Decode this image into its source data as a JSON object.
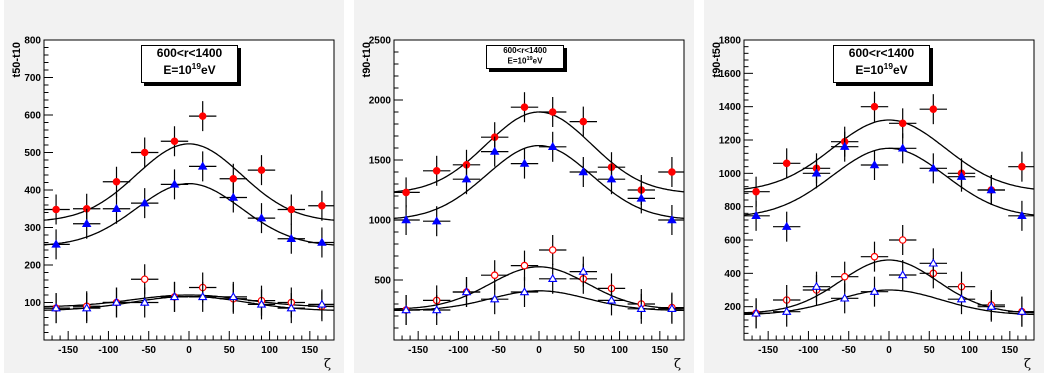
{
  "chart_data": [
    {
      "type": "scatter",
      "ylabel": "t50-t10",
      "xlabel": "ζ",
      "xlim": [
        -180,
        180
      ],
      "ylim": [
        0,
        800
      ],
      "yticks": [
        100,
        200,
        300,
        400,
        500,
        600,
        700,
        800
      ],
      "xticks": [
        -150,
        -100,
        -50,
        0,
        50,
        100,
        150
      ],
      "label_line1": "600<r<1400",
      "label_line2_base": "E=10",
      "label_line2_exp": "19",
      "label_line2_unit": "eV",
      "series": [
        {
          "marker": "filled-circle",
          "color": "#ff0000",
          "x": [
            -165,
            -127,
            -90,
            -55,
            -18,
            17,
            55,
            90,
            127,
            165
          ],
          "y": [
            348,
            350,
            422,
            500,
            530,
            597,
            430,
            453,
            348,
            358
          ]
        },
        {
          "marker": "filled-triangle",
          "color": "#0000ff",
          "x": [
            -165,
            -127,
            -90,
            -55,
            -18,
            17,
            55,
            90,
            127,
            165
          ],
          "y": [
            255,
            310,
            350,
            365,
            415,
            463,
            380,
            325,
            270,
            260
          ]
        },
        {
          "marker": "open-circle",
          "color": "#ff0000",
          "x": [
            -165,
            -127,
            -90,
            -55,
            -18,
            17,
            55,
            90,
            127,
            165
          ],
          "y": [
            85,
            90,
            100,
            162,
            115,
            140,
            110,
            105,
            100,
            90
          ]
        },
        {
          "marker": "open-triangle",
          "color": "#0000ff",
          "x": [
            -165,
            -127,
            -90,
            -55,
            -18,
            17,
            55,
            90,
            127,
            165
          ],
          "y": [
            85,
            85,
            100,
            100,
            115,
            115,
            115,
            95,
            85,
            95
          ]
        }
      ],
      "fits": [
        {
          "base": 315,
          "amp": 208,
          "mu": 0,
          "sigma": 65
        },
        {
          "base": 250,
          "amp": 167,
          "mu": 0,
          "sigma": 65
        },
        {
          "base": 88,
          "amp": 32,
          "mu": 0,
          "sigma": 70
        },
        {
          "base": 78,
          "amp": 38,
          "mu": 0,
          "sigma": 70
        }
      ]
    },
    {
      "type": "scatter",
      "ylabel": "t90-t10",
      "xlabel": "ζ",
      "xlim": [
        -180,
        180
      ],
      "ylim": [
        0,
        2500
      ],
      "yticks": [
        500,
        1000,
        1500,
        2000,
        2500
      ],
      "xticks": [
        -150,
        -100,
        -50,
        0,
        50,
        100,
        150
      ],
      "label_line1": "600<r<1400",
      "label_line2_base": "E=10",
      "label_line2_exp": "19",
      "label_line2_unit": "eV",
      "series": [
        {
          "marker": "filled-circle",
          "color": "#ff0000",
          "x": [
            -165,
            -127,
            -90,
            -55,
            -18,
            17,
            55,
            90,
            127,
            165
          ],
          "y": [
            1230,
            1410,
            1460,
            1690,
            1940,
            1900,
            1820,
            1440,
            1250,
            1400
          ]
        },
        {
          "marker": "filled-triangle",
          "color": "#0000ff",
          "x": [
            -165,
            -127,
            -90,
            -55,
            -18,
            17,
            55,
            90,
            127,
            165
          ],
          "y": [
            1000,
            990,
            1340,
            1570,
            1470,
            1610,
            1400,
            1340,
            1180,
            1000
          ]
        },
        {
          "marker": "open-circle",
          "color": "#ff0000",
          "x": [
            -165,
            -127,
            -90,
            -55,
            -18,
            17,
            55,
            90,
            127,
            165
          ],
          "y": [
            250,
            330,
            400,
            540,
            620,
            750,
            510,
            430,
            300,
            270
          ]
        },
        {
          "marker": "open-triangle",
          "color": "#0000ff",
          "x": [
            -165,
            -127,
            -90,
            -55,
            -18,
            17,
            55,
            90,
            127,
            165
          ],
          "y": [
            250,
            250,
            400,
            340,
            400,
            510,
            570,
            330,
            260,
            260
          ]
        }
      ],
      "fits": [
        {
          "base": 1220,
          "amp": 680,
          "mu": 0,
          "sigma": 65
        },
        {
          "base": 1000,
          "amp": 620,
          "mu": 0,
          "sigma": 65
        },
        {
          "base": 255,
          "amp": 355,
          "mu": 0,
          "sigma": 60
        },
        {
          "base": 245,
          "amp": 165,
          "mu": 0,
          "sigma": 60
        }
      ]
    },
    {
      "type": "scatter",
      "ylabel": "t90-t50",
      "xlabel": "ζ",
      "xlim": [
        -180,
        180
      ],
      "ylim": [
        0,
        1800
      ],
      "yticks": [
        200,
        400,
        600,
        800,
        1000,
        1200,
        1400,
        1600,
        1800
      ],
      "xticks": [
        -150,
        -100,
        -50,
        0,
        50,
        100,
        150
      ],
      "label_line1": "600<r<1400",
      "label_line2_base": "E=10",
      "label_line2_exp": "19",
      "label_line2_unit": "eV",
      "series": [
        {
          "marker": "filled-circle",
          "color": "#ff0000",
          "x": [
            -165,
            -127,
            -90,
            -55,
            -18,
            17,
            55,
            90,
            127,
            165
          ],
          "y": [
            890,
            1060,
            1030,
            1190,
            1400,
            1300,
            1385,
            1000,
            900,
            1040
          ]
        },
        {
          "marker": "filled-triangle",
          "color": "#0000ff",
          "x": [
            -165,
            -127,
            -90,
            -55,
            -18,
            17,
            55,
            90,
            127,
            165
          ],
          "y": [
            745,
            680,
            1000,
            1160,
            1050,
            1150,
            1030,
            980,
            900,
            745
          ]
        },
        {
          "marker": "open-circle",
          "color": "#ff0000",
          "x": [
            -165,
            -127,
            -90,
            -55,
            -18,
            17,
            55,
            90,
            127,
            165
          ],
          "y": [
            160,
            240,
            300,
            380,
            500,
            600,
            400,
            320,
            210,
            170
          ]
        },
        {
          "marker": "open-triangle",
          "color": "#0000ff",
          "x": [
            -165,
            -127,
            -90,
            -55,
            -18,
            17,
            55,
            90,
            127,
            165
          ],
          "y": [
            160,
            170,
            320,
            250,
            290,
            390,
            460,
            245,
            200,
            170
          ]
        }
      ],
      "fits": [
        {
          "base": 890,
          "amp": 430,
          "mu": 0,
          "sigma": 70
        },
        {
          "base": 735,
          "amp": 415,
          "mu": 0,
          "sigma": 70
        },
        {
          "base": 160,
          "amp": 320,
          "mu": 0,
          "sigma": 60
        },
        {
          "base": 150,
          "amp": 150,
          "mu": 0,
          "sigma": 65
        }
      ]
    }
  ]
}
